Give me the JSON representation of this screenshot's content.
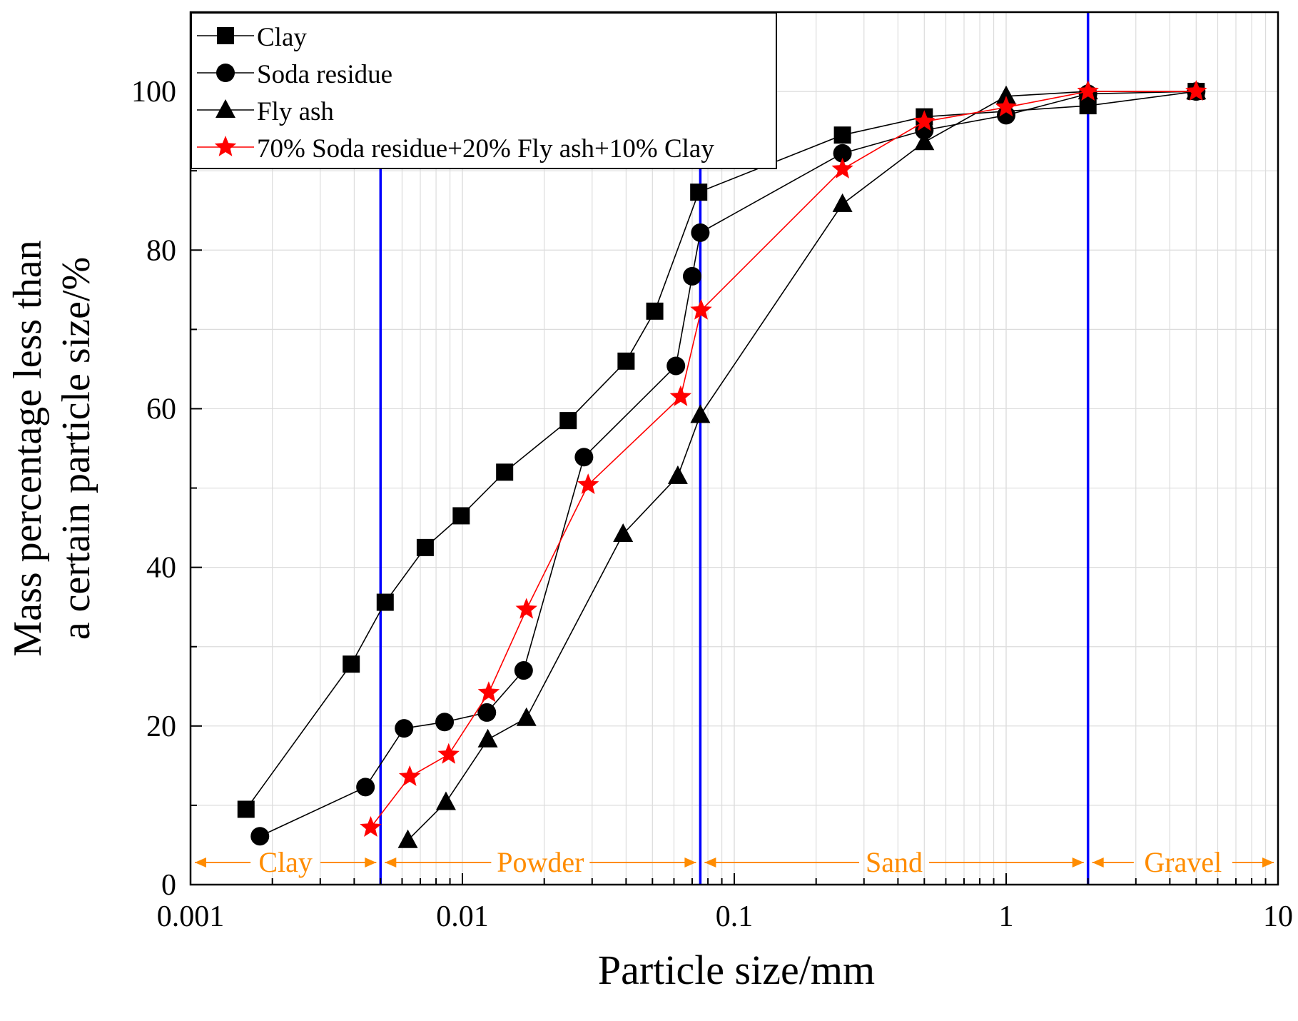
{
  "chart_data": {
    "type": "line",
    "xscale": "log",
    "xlim": [
      0.001,
      10
    ],
    "ylim": [
      0,
      110
    ],
    "xlabel": "Particle size/mm",
    "ylabel_line1": "Mass percentage less than",
    "ylabel_line2": "a certain particle size/%",
    "xticks": [
      {
        "value": 0.001,
        "label": "0.001"
      },
      {
        "value": 0.01,
        "label": "0.01"
      },
      {
        "value": 0.1,
        "label": "0.1"
      },
      {
        "value": 1,
        "label": "1"
      },
      {
        "value": 10,
        "label": "10"
      }
    ],
    "yticks": [
      {
        "value": 0,
        "label": "0"
      },
      {
        "value": 20,
        "label": "20"
      },
      {
        "value": 40,
        "label": "40"
      },
      {
        "value": 60,
        "label": "60"
      },
      {
        "value": 80,
        "label": "80"
      },
      {
        "value": 100,
        "label": "100"
      }
    ],
    "grid": true,
    "legend_position": "top-left",
    "series": [
      {
        "name": "Clay",
        "marker": "square",
        "color": "#000000",
        "points": [
          [
            0.0016,
            9.5
          ],
          [
            0.0039,
            27.8
          ],
          [
            0.0052,
            35.6
          ],
          [
            0.0073,
            42.5
          ],
          [
            0.0099,
            46.5
          ],
          [
            0.0143,
            52.0
          ],
          [
            0.0245,
            58.5
          ],
          [
            0.04,
            66.0
          ],
          [
            0.051,
            72.3
          ],
          [
            0.074,
            87.3
          ],
          [
            0.25,
            94.5
          ],
          [
            0.5,
            96.8
          ],
          [
            2,
            98.2
          ],
          [
            5,
            100
          ]
        ]
      },
      {
        "name": "Soda residue",
        "marker": "circle",
        "color": "#000000",
        "points": [
          [
            0.0018,
            6.1
          ],
          [
            0.0044,
            12.3
          ],
          [
            0.0061,
            19.7
          ],
          [
            0.0086,
            20.5
          ],
          [
            0.0123,
            21.7
          ],
          [
            0.0168,
            27.0
          ],
          [
            0.028,
            53.9
          ],
          [
            0.061,
            65.4
          ],
          [
            0.07,
            76.7
          ],
          [
            0.075,
            82.2
          ],
          [
            0.25,
            92.2
          ],
          [
            0.5,
            95.1
          ],
          [
            1,
            97.0
          ],
          [
            2,
            99.7
          ],
          [
            5,
            100
          ]
        ]
      },
      {
        "name": "Fly ash",
        "marker": "triangle",
        "color": "#000000",
        "points": [
          [
            0.0063,
            5.6
          ],
          [
            0.0087,
            10.4
          ],
          [
            0.0124,
            18.3
          ],
          [
            0.0172,
            21.0
          ],
          [
            0.039,
            44.2
          ],
          [
            0.062,
            51.5
          ],
          [
            0.075,
            59.2
          ],
          [
            0.25,
            85.8
          ],
          [
            0.5,
            93.6
          ],
          [
            1,
            99.4
          ],
          [
            2,
            100
          ],
          [
            5,
            100
          ]
        ]
      },
      {
        "name": "70% Soda residue+20% Fly ash+10% Clay",
        "marker": "star",
        "color": "#ff0000",
        "points": [
          [
            0.0046,
            7.2
          ],
          [
            0.0064,
            13.6
          ],
          [
            0.0089,
            16.4
          ],
          [
            0.0125,
            24.2
          ],
          [
            0.0172,
            34.7
          ],
          [
            0.029,
            50.4
          ],
          [
            0.0635,
            61.5
          ],
          [
            0.0755,
            72.4
          ],
          [
            0.25,
            90.2
          ],
          [
            0.5,
            96.2
          ],
          [
            1,
            98.0
          ],
          [
            2,
            100
          ],
          [
            5,
            100
          ]
        ]
      }
    ],
    "boundaries": {
      "values": [
        0.005,
        0.075,
        2
      ],
      "color": "#0000ff"
    },
    "zones": {
      "color": "#ff8c00",
      "items": [
        {
          "label": "Clay",
          "from": 0.001,
          "to": 0.005
        },
        {
          "label": "Powder",
          "from": 0.005,
          "to": 0.075
        },
        {
          "label": "Sand",
          "from": 0.075,
          "to": 2
        },
        {
          "label": "Gravel",
          "from": 2,
          "to": 10
        }
      ]
    }
  }
}
